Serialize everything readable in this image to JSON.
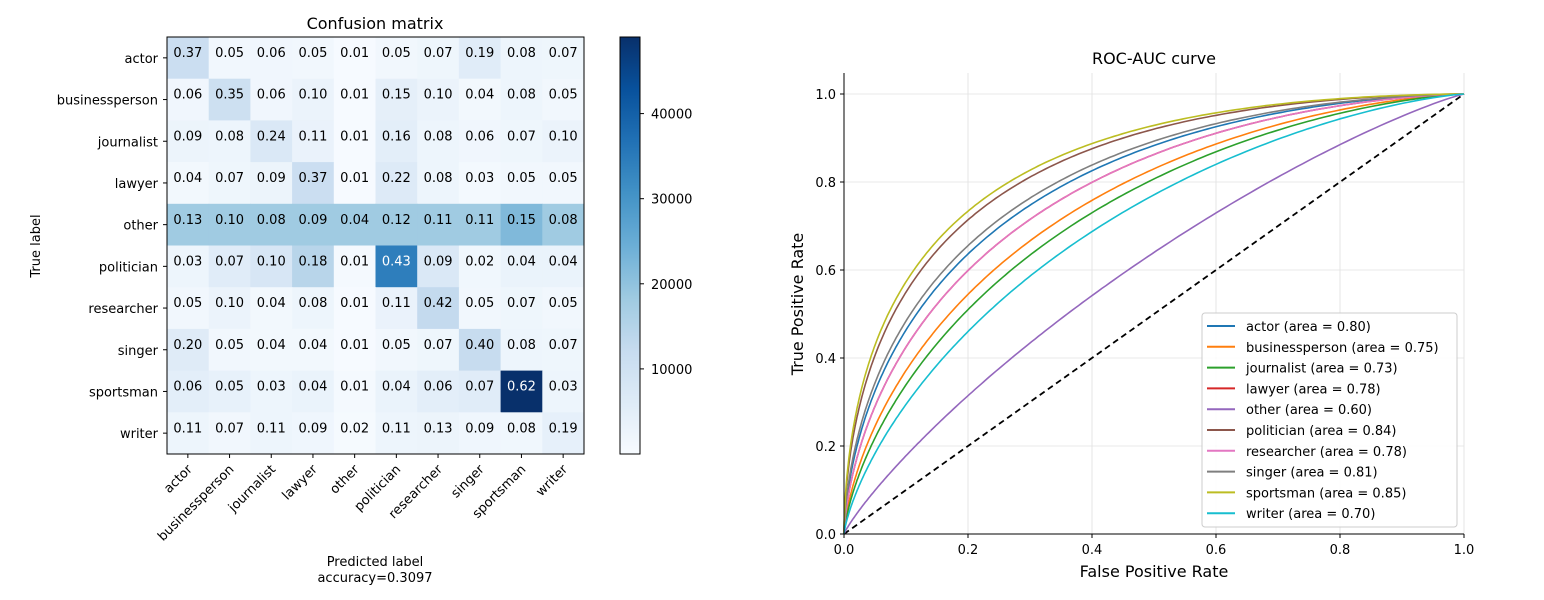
{
  "chart_data": [
    {
      "type": "heatmap",
      "title": "Confusion matrix",
      "xlabel": "Predicted label",
      "xlabel_sub": "accuracy=0.3097",
      "ylabel": "True label",
      "labels": [
        "actor",
        "businessperson",
        "journalist",
        "lawyer",
        "other",
        "politician",
        "researcher",
        "singer",
        "sportsman",
        "writer"
      ],
      "values": [
        [
          "0.37",
          "0.05",
          "0.06",
          "0.05",
          "0.01",
          "0.05",
          "0.07",
          "0.19",
          "0.08",
          "0.07"
        ],
        [
          "0.06",
          "0.35",
          "0.06",
          "0.10",
          "0.01",
          "0.15",
          "0.10",
          "0.04",
          "0.08",
          "0.05"
        ],
        [
          "0.09",
          "0.08",
          "0.24",
          "0.11",
          "0.01",
          "0.16",
          "0.08",
          "0.06",
          "0.07",
          "0.10"
        ],
        [
          "0.04",
          "0.07",
          "0.09",
          "0.37",
          "0.01",
          "0.22",
          "0.08",
          "0.03",
          "0.05",
          "0.05"
        ],
        [
          "0.13",
          "0.10",
          "0.08",
          "0.09",
          "0.04",
          "0.12",
          "0.11",
          "0.11",
          "0.15",
          "0.08"
        ],
        [
          "0.03",
          "0.07",
          "0.10",
          "0.18",
          "0.01",
          "0.43",
          "0.09",
          "0.02",
          "0.04",
          "0.04"
        ],
        [
          "0.05",
          "0.10",
          "0.04",
          "0.08",
          "0.01",
          "0.11",
          "0.42",
          "0.05",
          "0.07",
          "0.05"
        ],
        [
          "0.20",
          "0.05",
          "0.04",
          "0.04",
          "0.01",
          "0.05",
          "0.07",
          "0.40",
          "0.08",
          "0.07"
        ],
        [
          "0.06",
          "0.05",
          "0.03",
          "0.04",
          "0.01",
          "0.04",
          "0.06",
          "0.07",
          "0.62",
          "0.03"
        ],
        [
          "0.11",
          "0.07",
          "0.11",
          "0.09",
          "0.02",
          "0.11",
          "0.13",
          "0.09",
          "0.08",
          "0.19"
        ]
      ],
      "cell_counts": [
        [
          11000,
          1500,
          1800,
          1500,
          300,
          1500,
          2100,
          5600,
          2400,
          2100
        ],
        [
          1800,
          10400,
          1800,
          3000,
          300,
          4500,
          3000,
          1200,
          2400,
          1500
        ],
        [
          2700,
          2400,
          7100,
          3300,
          300,
          4800,
          2400,
          1800,
          2100,
          3000
        ],
        [
          1200,
          2100,
          2700,
          11000,
          300,
          6500,
          2400,
          900,
          1500,
          1500
        ],
        [
          18000,
          18000,
          18000,
          18000,
          18000,
          18000,
          18000,
          18000,
          22000,
          18000
        ],
        [
          2400,
          5600,
          8000,
          14400,
          800,
          34400,
          7200,
          1600,
          3200,
          3200
        ],
        [
          1500,
          3000,
          1200,
          2400,
          300,
          3300,
          12500,
          1500,
          2100,
          1500
        ],
        [
          6000,
          1500,
          1200,
          1200,
          300,
          1500,
          2100,
          11900,
          2400,
          2100
        ],
        [
          4800,
          4000,
          2400,
          3200,
          800,
          3200,
          4800,
          5600,
          49000,
          2400
        ],
        [
          2400,
          1500,
          2400,
          1900,
          400,
          2400,
          2800,
          1900,
          1700,
          4100
        ]
      ],
      "colorbar": {
        "min": 0,
        "max": 49000,
        "ticks": [
          "10000",
          "20000",
          "30000",
          "40000"
        ],
        "tick_values": [
          10000,
          20000,
          30000,
          40000
        ],
        "colormap": "Blues"
      }
    },
    {
      "type": "line",
      "title": "ROC-AUC curve",
      "xlabel": "False Positive Rate",
      "ylabel": "True Positive Rate",
      "xlim": [
        0,
        1
      ],
      "ylim": [
        0,
        1.05
      ],
      "grid": true,
      "legend_position": "bottom-right",
      "x_ticks": [
        "0.0",
        "0.2",
        "0.4",
        "0.6",
        "0.8",
        "1.0"
      ],
      "y_ticks": [
        "0.0",
        "0.2",
        "0.4",
        "0.6",
        "0.8",
        "1.0"
      ],
      "series": [
        {
          "name": "actor (area = 0.80)",
          "color": "#1f77b4",
          "auc": 0.8
        },
        {
          "name": "businessperson (area = 0.75)",
          "color": "#ff7f0e",
          "auc": 0.75
        },
        {
          "name": "journalist (area = 0.73)",
          "color": "#2ca02c",
          "auc": 0.73
        },
        {
          "name": "lawyer (area = 0.78)",
          "color": "#d62728",
          "auc": 0.78
        },
        {
          "name": "other (area = 0.60)",
          "color": "#9467bd",
          "auc": 0.6
        },
        {
          "name": "politician (area = 0.84)",
          "color": "#8c564b",
          "auc": 0.84
        },
        {
          "name": "researcher (area = 0.78)",
          "color": "#e377c2",
          "auc": 0.78
        },
        {
          "name": "singer (area = 0.81)",
          "color": "#7f7f7f",
          "auc": 0.81
        },
        {
          "name": "sportsman (area = 0.85)",
          "color": "#bcbd22",
          "auc": 0.85
        },
        {
          "name": "writer (area = 0.70)",
          "color": "#17becf",
          "auc": 0.7
        }
      ],
      "diagonal": {
        "color": "#000000",
        "style": "dashed",
        "x": [
          0,
          1
        ],
        "y": [
          0,
          1
        ]
      }
    }
  ]
}
